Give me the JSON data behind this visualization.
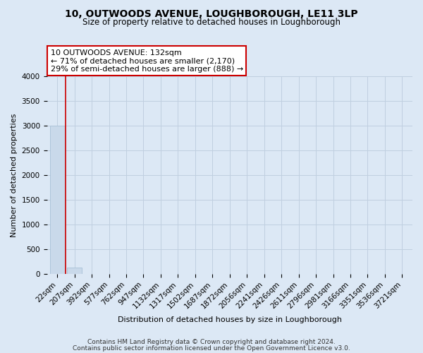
{
  "title": "10, OUTWOODS AVENUE, LOUGHBOROUGH, LE11 3LP",
  "subtitle": "Size of property relative to detached houses in Loughborough",
  "xlabel": "Distribution of detached houses by size in Loughborough",
  "ylabel": "Number of detached properties",
  "bar_labels": [
    "22sqm",
    "207sqm",
    "392sqm",
    "577sqm",
    "762sqm",
    "947sqm",
    "1132sqm",
    "1317sqm",
    "1502sqm",
    "1687sqm",
    "1872sqm",
    "2056sqm",
    "2241sqm",
    "2426sqm",
    "2611sqm",
    "2796sqm",
    "2981sqm",
    "3166sqm",
    "3351sqm",
    "3536sqm",
    "3721sqm"
  ],
  "bar_values": [
    3000,
    130,
    0,
    0,
    0,
    0,
    0,
    0,
    0,
    0,
    0,
    0,
    0,
    0,
    0,
    0,
    0,
    0,
    0,
    0,
    0
  ],
  "bar_color": "#c9d9ea",
  "bar_edgecolor": "#a8c0d6",
  "vline_x_bar_index": 0,
  "vline_color": "#cc0000",
  "ylim": [
    0,
    4000
  ],
  "yticks": [
    0,
    500,
    1000,
    1500,
    2000,
    2500,
    3000,
    3500,
    4000
  ],
  "annotation_title": "10 OUTWOODS AVENUE: 132sqm",
  "annotation_line1": "← 71% of detached houses are smaller (2,170)",
  "annotation_line2": "29% of semi-detached houses are larger (888) →",
  "annotation_box_facecolor": "#ffffff",
  "annotation_box_edgecolor": "#cc0000",
  "grid_color": "#c0cfe0",
  "bg_color": "#dce8f5",
  "plot_bg_color": "#dce8f5",
  "title_fontsize": 10,
  "subtitle_fontsize": 8.5,
  "ylabel_fontsize": 8,
  "xlabel_fontsize": 8,
  "tick_fontsize": 7.5,
  "annot_fontsize": 8,
  "footer1": "Contains HM Land Registry data © Crown copyright and database right 2024.",
  "footer2": "Contains public sector information licensed under the Open Government Licence v3.0."
}
